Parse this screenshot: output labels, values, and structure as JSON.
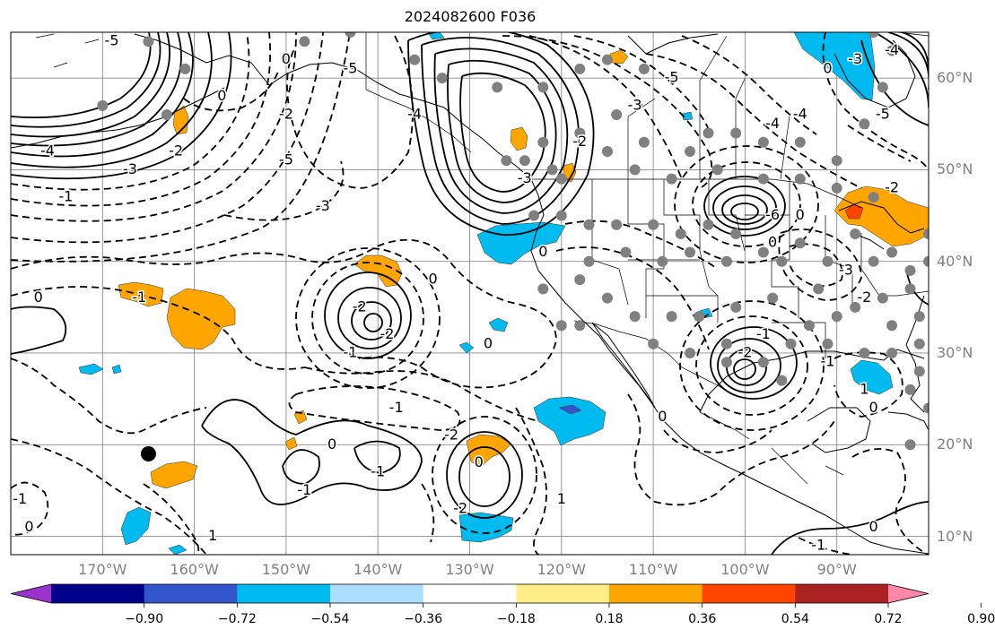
{
  "title": "2024082600 F036",
  "map": {
    "projection": "equirectangular",
    "lon_range": [
      -180,
      -80
    ],
    "lat_range": [
      8,
      65
    ],
    "coastlines": true,
    "borders": true,
    "gridlines": true
  },
  "lat_ticks": [
    {
      "lat": 60,
      "label": "60°N"
    },
    {
      "lat": 50,
      "label": "50°N"
    },
    {
      "lat": 40,
      "label": "40°N"
    },
    {
      "lat": 30,
      "label": "30°N"
    },
    {
      "lat": 20,
      "label": "20°N"
    },
    {
      "lat": 10,
      "label": "10°N"
    }
  ],
  "lon_ticks": [
    {
      "lon": -170,
      "label": "170°W"
    },
    {
      "lon": -160,
      "label": "160°W"
    },
    {
      "lon": -150,
      "label": "150°W"
    },
    {
      "lon": -140,
      "label": "140°W"
    },
    {
      "lon": -130,
      "label": "130°W"
    },
    {
      "lon": -120,
      "label": "120°W"
    },
    {
      "lon": -110,
      "label": "110°W"
    },
    {
      "lon": -100,
      "label": "100°W"
    },
    {
      "lon": -90,
      "label": "90°W"
    }
  ],
  "colorbar": {
    "extend": "both",
    "colors": [
      "#9933cc",
      "#000088",
      "#3355cc",
      "#00bbf0",
      "#aaddff",
      "#ffffff",
      "#ffee88",
      "#ffa500",
      "#ff4400",
      "#aa2222",
      "#ff88aa"
    ],
    "labels": [
      "−0.90",
      "−0.72",
      "−0.54",
      "−0.36",
      "−0.18",
      "0.18",
      "0.36",
      "0.54",
      "0.72",
      "0.90"
    ]
  },
  "contour_labels": [
    {
      "text": "0",
      "lon": -177,
      "lat": 36
    },
    {
      "text": "0",
      "lon": -178,
      "lat": 11
    },
    {
      "text": "-1",
      "lon": -174,
      "lat": 47
    },
    {
      "text": "-1",
      "lon": -179,
      "lat": 14
    },
    {
      "text": "-1",
      "lon": -166,
      "lat": 36
    },
    {
      "text": "1",
      "lon": -158,
      "lat": 10
    },
    {
      "text": "-2",
      "lon": -150,
      "lat": 56
    },
    {
      "text": "-2",
      "lon": -162,
      "lat": 52
    },
    {
      "text": "-3",
      "lon": -167,
      "lat": 50
    },
    {
      "text": "-3",
      "lon": -146,
      "lat": 46
    },
    {
      "text": "-4",
      "lon": -176,
      "lat": 52
    },
    {
      "text": "-4",
      "lon": -136,
      "lat": 56
    },
    {
      "text": "-5",
      "lon": -150,
      "lat": 51
    },
    {
      "text": "-5",
      "lon": -143,
      "lat": 61
    },
    {
      "text": "0",
      "lon": -150,
      "lat": 62
    },
    {
      "text": "-2",
      "lon": -142,
      "lat": 35
    },
    {
      "text": "-2",
      "lon": -139,
      "lat": 32
    },
    {
      "text": "-1",
      "lon": -143,
      "lat": 30
    },
    {
      "text": "0",
      "lon": -134,
      "lat": 38
    },
    {
      "text": "-1",
      "lon": -138,
      "lat": 24
    },
    {
      "text": "-2",
      "lon": -132,
      "lat": 21
    },
    {
      "text": "-1",
      "lon": -148,
      "lat": 15
    },
    {
      "text": "0",
      "lon": -145,
      "lat": 20
    },
    {
      "text": "-1",
      "lon": -140,
      "lat": 17
    },
    {
      "text": "0",
      "lon": -129,
      "lat": 18
    },
    {
      "text": "-2",
      "lon": -131,
      "lat": 13
    },
    {
      "text": "1",
      "lon": -120,
      "lat": 14
    },
    {
      "text": "0",
      "lon": -128,
      "lat": 31
    },
    {
      "text": "0",
      "lon": -122,
      "lat": 41
    },
    {
      "text": "-3",
      "lon": -124,
      "lat": 49
    },
    {
      "text": "-2",
      "lon": -118,
      "lat": 53
    },
    {
      "text": "-3",
      "lon": -112,
      "lat": 57
    },
    {
      "text": "-5",
      "lon": -108,
      "lat": 60
    },
    {
      "text": "-4",
      "lon": -97,
      "lat": 55
    },
    {
      "text": "-6",
      "lon": -97,
      "lat": 45
    },
    {
      "text": "0",
      "lon": -94,
      "lat": 45
    },
    {
      "text": "0",
      "lon": -97,
      "lat": 42
    },
    {
      "text": "-3",
      "lon": -89,
      "lat": 39
    },
    {
      "text": "-2",
      "lon": -87,
      "lat": 36
    },
    {
      "text": "-2",
      "lon": -84,
      "lat": 48
    },
    {
      "text": "-4",
      "lon": -94,
      "lat": 56
    },
    {
      "text": "-1",
      "lon": -98,
      "lat": 32
    },
    {
      "text": "-2",
      "lon": -100,
      "lat": 30
    },
    {
      "text": "0",
      "lon": -109,
      "lat": 23
    },
    {
      "text": "1",
      "lon": -87,
      "lat": 26
    },
    {
      "text": "-1",
      "lon": -91,
      "lat": 29
    },
    {
      "text": "-1",
      "lon": -92,
      "lat": 9
    },
    {
      "text": "0",
      "lon": -86,
      "lat": 11
    },
    {
      "text": "0",
      "lon": -86,
      "lat": 24
    },
    {
      "text": "0",
      "lon": -91,
      "lat": 61
    },
    {
      "text": "-3",
      "lon": -88,
      "lat": 62
    },
    {
      "text": "-5",
      "lon": -85,
      "lat": 56
    },
    {
      "text": "-4",
      "lon": -84,
      "lat": 63
    },
    {
      "text": "-5",
      "lon": -169,
      "lat": 64
    },
    {
      "text": "0",
      "lon": -157,
      "lat": 58
    }
  ],
  "stations_gray": [
    [
      -165,
      64
    ],
    [
      -161,
      61
    ],
    [
      -170,
      57
    ],
    [
      -163,
      56
    ],
    [
      -143,
      65
    ],
    [
      -148,
      64
    ],
    [
      -136,
      62
    ],
    [
      -133,
      60
    ],
    [
      -127,
      59
    ],
    [
      -122,
      59
    ],
    [
      -118,
      61
    ],
    [
      -115,
      62
    ],
    [
      -111,
      61
    ],
    [
      -114,
      56
    ],
    [
      -118,
      54
    ],
    [
      -122,
      53
    ],
    [
      -126,
      51
    ],
    [
      -124,
      51
    ],
    [
      -121,
      50
    ],
    [
      -120,
      49
    ],
    [
      -115,
      52
    ],
    [
      -111,
      53
    ],
    [
      -106,
      52
    ],
    [
      -104,
      54
    ],
    [
      -101,
      54
    ],
    [
      -98,
      53
    ],
    [
      -94,
      53
    ],
    [
      -90,
      51
    ],
    [
      -87,
      55
    ],
    [
      -85,
      59
    ],
    [
      -84,
      63
    ],
    [
      -86,
      65
    ],
    [
      -112,
      50
    ],
    [
      -108,
      49
    ],
    [
      -103,
      50
    ],
    [
      -98,
      49
    ],
    [
      -94,
      49
    ],
    [
      -90,
      48
    ],
    [
      -86,
      47
    ],
    [
      -88,
      43
    ],
    [
      -84,
      41
    ],
    [
      -82,
      39
    ],
    [
      -86,
      40
    ],
    [
      -91,
      40
    ],
    [
      -94,
      42
    ],
    [
      -98,
      41
    ],
    [
      -101,
      43
    ],
    [
      -104,
      44
    ],
    [
      -107,
      43
    ],
    [
      -110,
      44
    ],
    [
      -114,
      44
    ],
    [
      -117,
      44
    ],
    [
      -120,
      45
    ],
    [
      -123,
      45
    ],
    [
      -117,
      40
    ],
    [
      -113,
      41
    ],
    [
      -109,
      40
    ],
    [
      -106,
      41
    ],
    [
      -102,
      40
    ],
    [
      -96,
      40
    ],
    [
      -92,
      37
    ],
    [
      -88,
      35
    ],
    [
      -84,
      33
    ],
    [
      -85,
      36
    ],
    [
      -90,
      34
    ],
    [
      -93,
      33
    ],
    [
      -97,
      36
    ],
    [
      -101,
      35
    ],
    [
      -105,
      34
    ],
    [
      -108,
      34
    ],
    [
      -112,
      34
    ],
    [
      -115,
      36
    ],
    [
      -118,
      38
    ],
    [
      -122,
      37
    ],
    [
      -118,
      33
    ],
    [
      -120,
      33
    ],
    [
      -110,
      31
    ],
    [
      -106,
      30
    ],
    [
      -102,
      29
    ],
    [
      -98,
      29
    ],
    [
      -95,
      31
    ],
    [
      -91,
      31
    ],
    [
      -87,
      30
    ],
    [
      -84,
      30
    ],
    [
      -81,
      31
    ],
    [
      -81,
      34
    ],
    [
      -82,
      37
    ],
    [
      -80,
      40
    ],
    [
      -80,
      43
    ],
    [
      -81,
      28
    ],
    [
      -82,
      26
    ],
    [
      -80,
      24
    ],
    [
      -82,
      20
    ],
    [
      -96,
      27
    ],
    [
      -102,
      31
    ]
  ],
  "station_black": [
    -165,
    19
  ]
}
